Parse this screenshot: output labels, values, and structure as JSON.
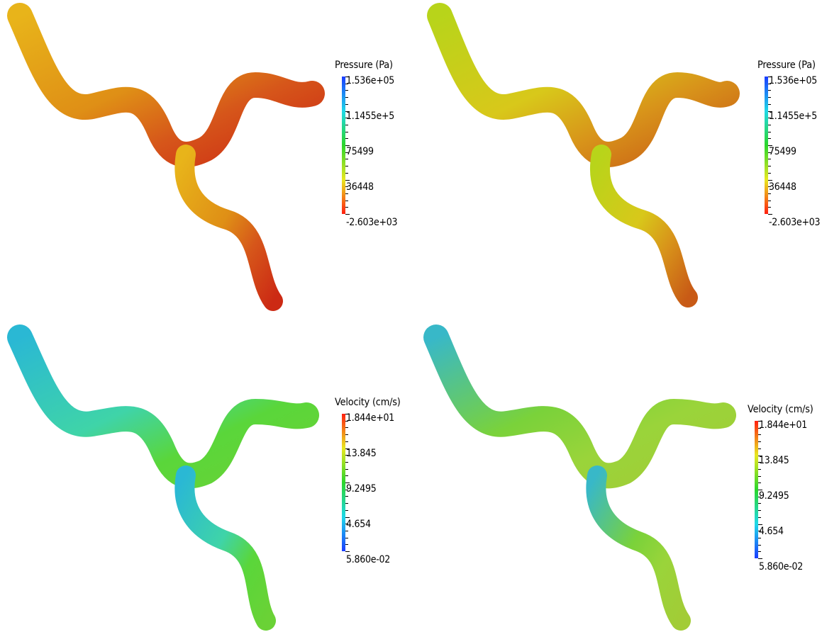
{
  "panels": [
    {
      "legend": {
        "title": "Pressure (Pa)",
        "labels": [
          "1.536e+05",
          "1.1455e+5",
          "75499",
          "36448",
          "-2.603e+03"
        ],
        "gradient": [
          "#1a3cff",
          "#1fd8e8",
          "#2bd62b",
          "#e8e820",
          "#ff1f10"
        ]
      },
      "colors": {
        "inlet": "#e8b41a",
        "mid": "#df8f16",
        "branch": "#d6561a",
        "outlet": "#cc2a14"
      }
    },
    {
      "legend": {
        "title": "Pressure (Pa)",
        "labels": [
          "1.536e+05",
          "1.1455e+5",
          "75499",
          "36448",
          "-2.603e+03"
        ],
        "gradient": [
          "#1a3cff",
          "#1fd8e8",
          "#2bd62b",
          "#e8e820",
          "#ff1f10"
        ]
      },
      "colors": {
        "inlet": "#b8d41a",
        "mid": "#d8c81a",
        "branch": "#d8941a",
        "outlet": "#c85a16"
      }
    },
    {
      "legend": {
        "title": "Velocity (cm/s)",
        "labels": [
          "1.844e+01",
          "13.845",
          "9.2495",
          "4.654",
          "5.860e-02"
        ],
        "gradient": [
          "#ff1f10",
          "#e8e820",
          "#2bd62b",
          "#1fd8e8",
          "#1a3cff"
        ]
      },
      "colors": {
        "inlet": "#2ab8d4",
        "mid": "#3fd4a8",
        "branch": "#5ad63a",
        "outlet": "#6ad236"
      }
    },
    {
      "legend": {
        "title": "Velocity (cm/s)",
        "labels": [
          "1.844e+01",
          "13.845",
          "9.2495",
          "4.654",
          "5.860e-02"
        ],
        "gradient": [
          "#ff1f10",
          "#e8e820",
          "#2bd62b",
          "#1fd8e8",
          "#1a3cff"
        ]
      },
      "colors": {
        "inlet": "#38b8c8",
        "mid": "#7ad23a",
        "branch": "#9ad43a",
        "outlet": "#a2cc36"
      }
    }
  ]
}
